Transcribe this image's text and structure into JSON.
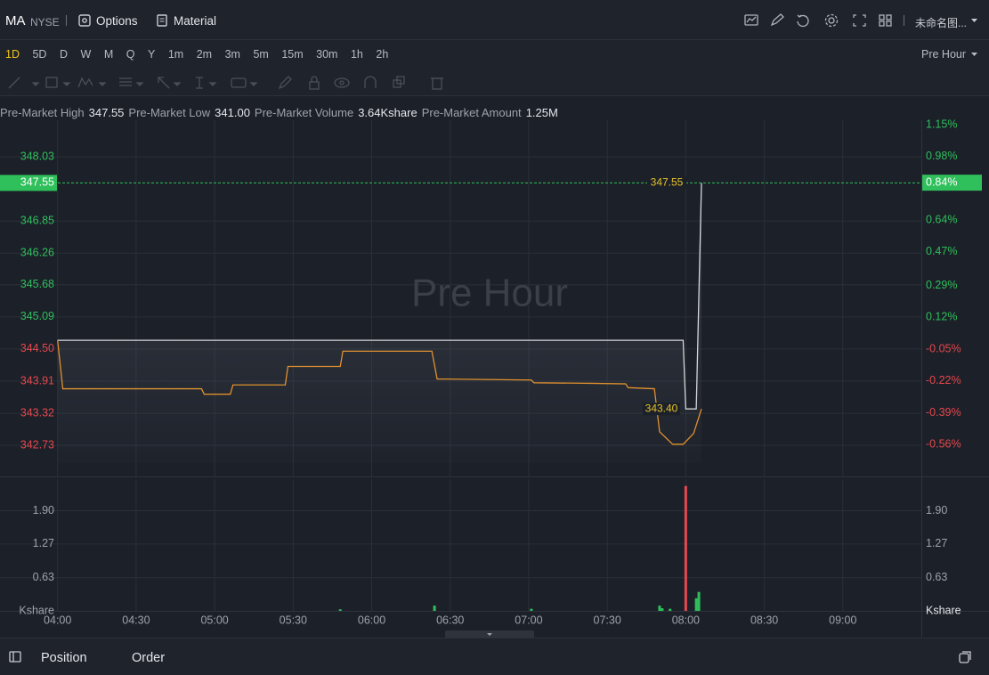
{
  "header": {
    "symbol": "MA",
    "exchange": "NYSE",
    "options": "Options",
    "material": "Material",
    "layout_name": "未命名图..."
  },
  "intervals": {
    "items": [
      "1D",
      "5D",
      "D",
      "W",
      "M",
      "Q",
      "Y",
      "1m",
      "2m",
      "3m",
      "5m",
      "15m",
      "30m",
      "1h",
      "2h"
    ],
    "active": 0,
    "session": "Pre Hour"
  },
  "stats": [
    {
      "label": "Pre-Market High",
      "value": "347.55"
    },
    {
      "label": "Pre-Market Low",
      "value": "341.00"
    },
    {
      "label": "Pre-Market Volume",
      "value": "3.64Kshare"
    },
    {
      "label": "Pre-Market Amount",
      "value": "1.25M"
    }
  ],
  "chart_data": [
    {
      "type": "line",
      "watermark": "Pre Hour",
      "series": [
        {
          "color": "#d4d6da",
          "x": [
            "04:00",
            "07:59",
            "08:00",
            "08:04",
            "08:06"
          ],
          "values": [
            344.66,
            344.66,
            343.4,
            343.4,
            347.55
          ]
        },
        {
          "color": "#e0912f",
          "x": [
            "04:00",
            "04:02",
            "04:55",
            "04:56",
            "05:06",
            "05:07",
            "05:27",
            "05:28",
            "05:48",
            "05:49",
            "06:23",
            "06:25",
            "07:01",
            "07:02",
            "07:24",
            "07:37",
            "07:38",
            "07:48",
            "07:50",
            "07:55",
            "07:59",
            "08:03",
            "08:06"
          ],
          "values": [
            344.66,
            343.77,
            343.77,
            343.67,
            343.67,
            343.84,
            343.84,
            344.18,
            344.18,
            344.46,
            344.46,
            343.95,
            343.93,
            343.88,
            343.87,
            343.86,
            343.79,
            343.77,
            342.98,
            342.75,
            342.75,
            342.95,
            343.4
          ]
        }
      ],
      "xlim": [
        "03:38",
        "09:30"
      ],
      "xticks": [
        "04:00",
        "04:30",
        "05:00",
        "05:30",
        "06:00",
        "06:30",
        "07:00",
        "07:30",
        "08:00",
        "08:30",
        "09:00"
      ],
      "ylim": [
        342.16,
        348.62
      ],
      "yticks": [
        {
          "value": 348.03,
          "label": "348.03"
        },
        {
          "value": 346.85,
          "label": "346.85"
        },
        {
          "value": 346.26,
          "label": "346.26"
        },
        {
          "value": 345.68,
          "label": "345.68"
        },
        {
          "value": 345.09,
          "label": "345.09"
        },
        {
          "value": 344.5,
          "label": "344.50"
        },
        {
          "value": 343.91,
          "label": "343.91"
        },
        {
          "value": 343.32,
          "label": "343.32"
        },
        {
          "value": 342.73,
          "label": "342.73"
        }
      ],
      "y2lim": [
        -0.73,
        1.15
      ],
      "y2ticks": [
        {
          "value": 1.15,
          "label": "1.15%"
        },
        {
          "value": 0.98,
          "label": "0.98%"
        },
        {
          "value": 0.64,
          "label": "0.64%"
        },
        {
          "value": 0.47,
          "label": "0.47%"
        },
        {
          "value": 0.29,
          "label": "0.29%"
        },
        {
          "value": 0.12,
          "label": "0.12%"
        },
        {
          "value": -0.05,
          "label": "-0.05%"
        },
        {
          "value": -0.22,
          "label": "-0.22%"
        },
        {
          "value": -0.39,
          "label": "-0.39%"
        },
        {
          "value": -0.56,
          "label": "-0.56%"
        }
      ],
      "grid": true,
      "last_value": 347.55,
      "last_change": {
        "value": 0.84,
        "label": "0.84%"
      },
      "max_label": 347.55,
      "min_label": {
        "value": 343.4,
        "label": "343.40"
      }
    },
    {
      "type": "bar",
      "unit": "Kshare",
      "x": [
        "05:48",
        "06:24",
        "07:01",
        "07:50",
        "07:51",
        "07:54",
        "08:00",
        "08:04",
        "08:05"
      ],
      "values": [
        0.03,
        0.1,
        0.04,
        0.1,
        0.05,
        0.04,
        2.37,
        0.24,
        0.36
      ],
      "colors": [
        "#2fbf5b",
        "#2fbf5b",
        "#2fbf5b",
        "#2fbf5b",
        "#2fbf5b",
        "#2fbf5b",
        "#e5484d",
        "#2fbf5b",
        "#2fbf5b"
      ],
      "xlim": [
        "03:38",
        "09:30"
      ],
      "xticks": [
        "04:00",
        "04:30",
        "05:00",
        "05:30",
        "06:00",
        "06:30",
        "07:00",
        "07:30",
        "08:00",
        "08:30",
        "09:00"
      ],
      "ylim": [
        0,
        2.5
      ],
      "yticks": [
        {
          "value": 1.9,
          "label": "1.90"
        },
        {
          "value": 1.27,
          "label": "1.27"
        },
        {
          "value": 0.63,
          "label": "0.63"
        }
      ],
      "grid": true
    }
  ],
  "footer": {
    "tabs": [
      "Position",
      "Order"
    ]
  }
}
